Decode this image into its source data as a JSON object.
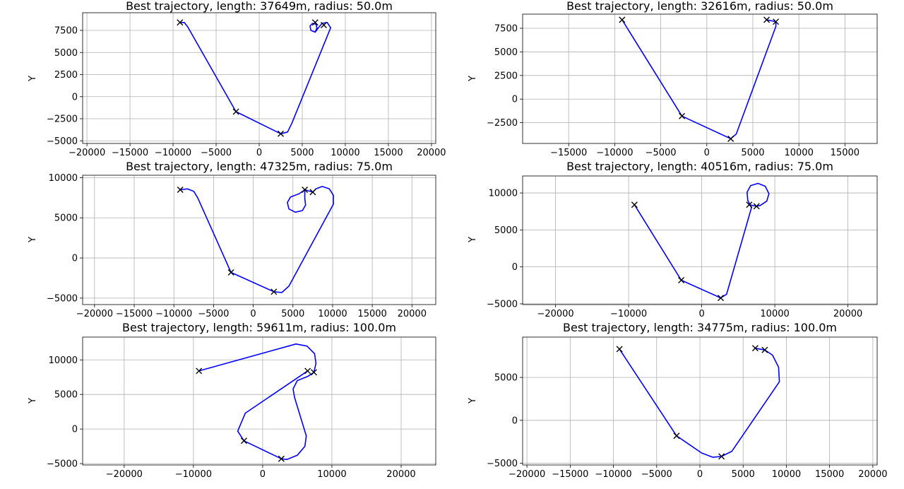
{
  "chart_data": [
    {
      "type": "line",
      "title": "Best trajectory, length: 37649m, radius: 50.0m",
      "xlabel": "",
      "ylabel": "Y",
      "xlim": [
        -20500,
        20500
      ],
      "ylim": [
        -5300,
        9500
      ],
      "xticks": [
        -20000,
        -15000,
        -10000,
        -5000,
        0,
        5000,
        10000,
        15000,
        20000
      ],
      "yticks": [
        -5000,
        -2500,
        0,
        2500,
        5000,
        7500
      ],
      "grid": true,
      "line_color": "#0000ff",
      "waypoints": [
        [
          -9200,
          8400
        ],
        [
          -2700,
          -1700
        ],
        [
          2500,
          -4200
        ],
        [
          6500,
          8400
        ],
        [
          7500,
          8100
        ]
      ],
      "path": [
        [
          -9200,
          8400
        ],
        [
          -8700,
          8400
        ],
        [
          -8300,
          7900
        ],
        [
          -2700,
          -1700
        ],
        [
          2500,
          -4200
        ],
        [
          3300,
          -4000
        ],
        [
          3800,
          -3000
        ],
        [
          8300,
          7800
        ],
        [
          7900,
          8400
        ],
        [
          7300,
          8300
        ],
        [
          6800,
          7700
        ],
        [
          6500,
          7300
        ],
        [
          6000,
          7500
        ],
        [
          5900,
          8000
        ],
        [
          6200,
          8300
        ],
        [
          6600,
          8200
        ],
        [
          6700,
          7800
        ],
        [
          6500,
          7300
        ]
      ]
    },
    {
      "type": "line",
      "title": "Best trajectory, length: 32616m, radius: 50.0m",
      "xlabel": "",
      "ylabel": "Y",
      "xlim": [
        -20000,
        18500
      ],
      "ylim": [
        -4700,
        9000
      ],
      "xticks": [
        -15000,
        -10000,
        -5000,
        0,
        5000,
        10000,
        15000
      ],
      "yticks": [
        -2500,
        0,
        2500,
        5000,
        7500
      ],
      "grid": true,
      "line_color": "#0000ff",
      "waypoints": [
        [
          -9200,
          8400
        ],
        [
          -2700,
          -1800
        ],
        [
          2600,
          -4200
        ],
        [
          6500,
          8400
        ],
        [
          7500,
          8200
        ]
      ],
      "path": [
        [
          -9200,
          8400
        ],
        [
          -2700,
          -1800
        ],
        [
          2600,
          -4200
        ],
        [
          3200,
          -3700
        ],
        [
          7500,
          7700
        ],
        [
          7500,
          8200
        ],
        [
          6500,
          8400
        ]
      ]
    },
    {
      "type": "line",
      "title": "Best trajectory, length: 47325m, radius: 75.0m",
      "xlabel": "",
      "ylabel": "Y",
      "xlim": [
        -21500,
        23000
      ],
      "ylim": [
        -5800,
        10300
      ],
      "xticks": [
        -20000,
        -15000,
        -10000,
        -5000,
        0,
        5000,
        10000,
        15000,
        20000
      ],
      "yticks": [
        -5000,
        0,
        5000,
        10000
      ],
      "grid": true,
      "line_color": "#0000ff",
      "waypoints": [
        [
          -9200,
          8500
        ],
        [
          -2800,
          -1800
        ],
        [
          2600,
          -4200
        ],
        [
          6500,
          8500
        ],
        [
          7500,
          8200
        ]
      ],
      "path": [
        [
          -9200,
          8500
        ],
        [
          -8300,
          8600
        ],
        [
          -7500,
          8300
        ],
        [
          -7000,
          7500
        ],
        [
          -2800,
          -1800
        ],
        [
          2600,
          -4200
        ],
        [
          3600,
          -4300
        ],
        [
          4500,
          -3500
        ],
        [
          10100,
          6700
        ],
        [
          10100,
          7800
        ],
        [
          9600,
          8600
        ],
        [
          8700,
          8900
        ],
        [
          7900,
          8600
        ],
        [
          7500,
          8200
        ],
        [
          6500,
          8500
        ],
        [
          5800,
          8000
        ],
        [
          4700,
          7600
        ],
        [
          4300,
          6900
        ],
        [
          4500,
          6100
        ],
        [
          5300,
          5700
        ],
        [
          6200,
          5900
        ],
        [
          6600,
          6600
        ],
        [
          6500,
          7400
        ],
        [
          6500,
          8500
        ]
      ]
    },
    {
      "type": "line",
      "title": "Best trajectory, length: 40516m, radius: 75.0m",
      "xlabel": "",
      "ylabel": "Y",
      "xlim": [
        -24500,
        24000
      ],
      "ylim": [
        -5100,
        12300
      ],
      "xticks": [
        -20000,
        -10000,
        0,
        10000,
        20000
      ],
      "yticks": [
        -5000,
        0,
        5000,
        10000
      ],
      "grid": true,
      "line_color": "#0000ff",
      "waypoints": [
        [
          -9200,
          8400
        ],
        [
          -2800,
          -1800
        ],
        [
          2600,
          -4200
        ],
        [
          6500,
          8400
        ],
        [
          7500,
          8200
        ]
      ],
      "path": [
        [
          -9200,
          8400
        ],
        [
          -2800,
          -1800
        ],
        [
          2600,
          -4200
        ],
        [
          3400,
          -3700
        ],
        [
          6800,
          8000
        ],
        [
          6300,
          9000
        ],
        [
          6200,
          10100
        ],
        [
          6700,
          11000
        ],
        [
          7700,
          11300
        ],
        [
          8700,
          10900
        ],
        [
          9200,
          9900
        ],
        [
          8900,
          8900
        ],
        [
          8000,
          8300
        ],
        [
          7500,
          8200
        ],
        [
          6500,
          8400
        ]
      ]
    },
    {
      "type": "line",
      "title": "Best trajectory, length: 59611m, radius: 100.0m",
      "xlabel": "",
      "ylabel": "Y",
      "xlim": [
        -26000,
        25000
      ],
      "ylim": [
        -5200,
        13300
      ],
      "xticks": [
        -20000,
        -10000,
        0,
        10000,
        20000
      ],
      "yticks": [
        -5000,
        0,
        5000,
        10000
      ],
      "grid": true,
      "line_color": "#0000ff",
      "waypoints": [
        [
          -9200,
          8400
        ],
        [
          -2700,
          -1700
        ],
        [
          2700,
          -4300
        ],
        [
          6500,
          8400
        ],
        [
          7400,
          8200
        ]
      ],
      "path": [
        [
          -9200,
          8400
        ],
        [
          4800,
          12300
        ],
        [
          6400,
          12000
        ],
        [
          7500,
          10900
        ],
        [
          7700,
          9500
        ],
        [
          7400,
          8200
        ],
        [
          6500,
          7600
        ],
        [
          5000,
          7000
        ],
        [
          4400,
          5800
        ],
        [
          4600,
          4600
        ],
        [
          6300,
          -1000
        ],
        [
          6100,
          -2500
        ],
        [
          5000,
          -3800
        ],
        [
          3500,
          -4400
        ],
        [
          2700,
          -4300
        ],
        [
          -2700,
          -1700
        ],
        [
          -3600,
          -300
        ],
        [
          -2500,
          2300
        ],
        [
          6500,
          8400
        ]
      ]
    },
    {
      "type": "line",
      "title": "Best trajectory, length: 34775m, radius: 100.0m",
      "xlabel": "",
      "ylabel": "Y",
      "xlim": [
        -20500,
        20500
      ],
      "ylim": [
        -5200,
        9700
      ],
      "xticks": [
        -20000,
        -15000,
        -10000,
        -5000,
        0,
        5000,
        10000,
        15000,
        20000
      ],
      "yticks": [
        -5000,
        0,
        5000
      ],
      "grid": true,
      "line_color": "#0000ff",
      "waypoints": [
        [
          -9300,
          8300
        ],
        [
          -2700,
          -1800
        ],
        [
          2500,
          -4200
        ],
        [
          6400,
          8400
        ],
        [
          7500,
          8200
        ]
      ],
      "path": [
        [
          -9300,
          8300
        ],
        [
          -2700,
          -1800
        ],
        [
          200,
          -3800
        ],
        [
          1500,
          -4300
        ],
        [
          2500,
          -4200
        ],
        [
          3700,
          -3600
        ],
        [
          9200,
          4500
        ],
        [
          9100,
          6200
        ],
        [
          8400,
          7600
        ],
        [
          7500,
          8200
        ],
        [
          6400,
          8400
        ]
      ]
    }
  ]
}
